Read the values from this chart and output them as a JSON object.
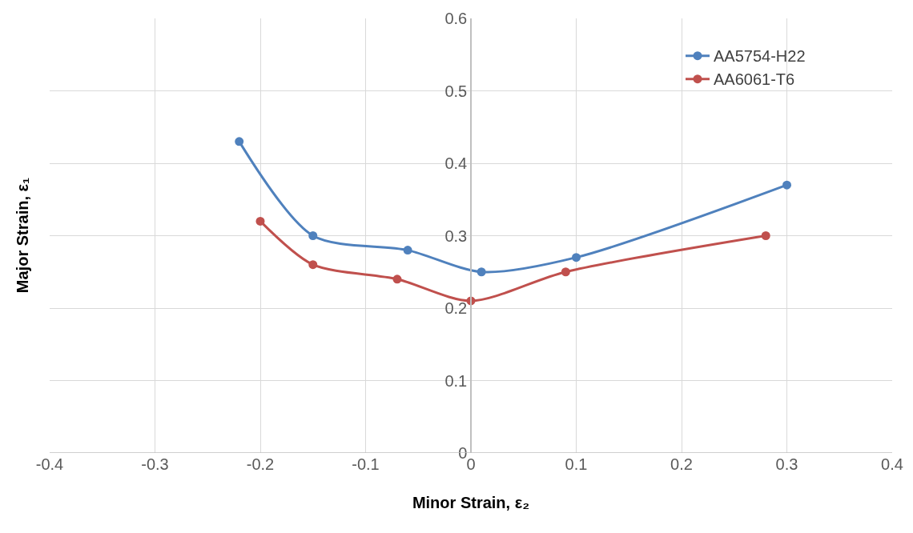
{
  "chart_data": {
    "type": "line",
    "xlabel": "Minor Strain, ε₂",
    "ylabel": "Major Strain, ε₁",
    "series": [
      {
        "name": "AA5754-H22",
        "color": "#4f81bd",
        "x": [
          -0.22,
          -0.15,
          -0.06,
          0.01,
          0.1,
          0.3
        ],
        "values": [
          0.43,
          0.3,
          0.28,
          0.25,
          0.27,
          0.37
        ]
      },
      {
        "name": "AA6061-T6",
        "color": "#c0504d",
        "x": [
          -0.2,
          -0.15,
          -0.07,
          0,
          0.09,
          0.28
        ],
        "values": [
          0.32,
          0.26,
          0.24,
          0.21,
          0.25,
          0.3
        ]
      }
    ],
    "xlim": [
      -0.4,
      0.4
    ],
    "xticks": [
      -0.4,
      -0.3,
      -0.2,
      -0.1,
      0,
      0.1,
      0.2,
      0.3,
      0.4
    ],
    "ylim": [
      0,
      0.6
    ],
    "yticks": [
      0,
      0.1,
      0.2,
      0.3,
      0.4,
      0.5,
      0.6
    ],
    "grid": true,
    "legend": "top right",
    "marker": "circle",
    "line_style": "solid"
  }
}
